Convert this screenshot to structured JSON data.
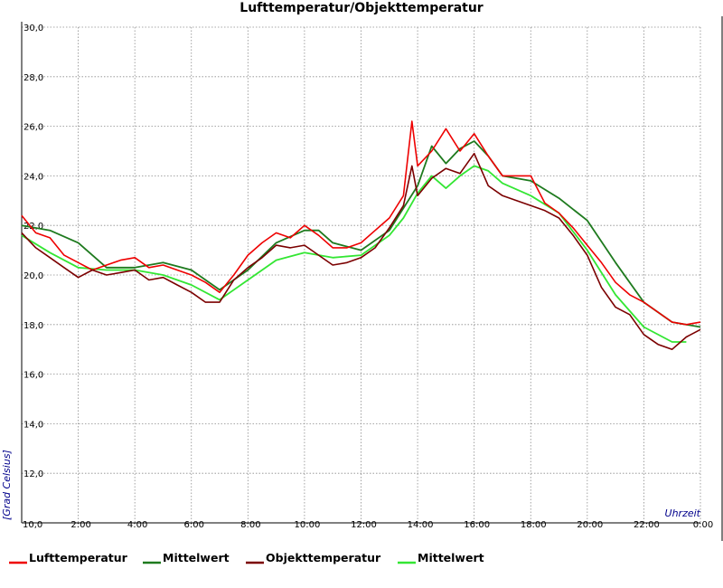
{
  "chart_data": {
    "type": "line",
    "title": "Lufttemperatur/Objekttemperatur",
    "xlabel": "Uhrzeit",
    "ylabel": "[Grad Celsius]",
    "xlim": [
      0,
      24
    ],
    "ylim": [
      10,
      30
    ],
    "x_ticks": [
      "10,0",
      "2:00",
      "4:00",
      "6:00",
      "8:00",
      "10:00",
      "12:00",
      "14:00",
      "16:00",
      "18:00",
      "20:00",
      "22:00",
      "0:00"
    ],
    "y_ticks": [
      "10,0",
      "12,0",
      "14,0",
      "16,0",
      "18,0",
      "20,0",
      "22,0",
      "24,0",
      "26,0",
      "28,0",
      "30,0"
    ],
    "grid": true,
    "legend_position": "bottom",
    "series": [
      {
        "name": "Lufttemperatur",
        "color": "#ee0000",
        "x": [
          0,
          0.5,
          1,
          1.5,
          2,
          2.5,
          3,
          3.5,
          4,
          4.5,
          5,
          5.5,
          6,
          6.5,
          7,
          7.5,
          8,
          8.5,
          9,
          9.5,
          10,
          10.5,
          11,
          11.5,
          12,
          12.5,
          13,
          13.5,
          13.8,
          14,
          14.5,
          15,
          15.5,
          16,
          16.5,
          17,
          17.5,
          18,
          18.5,
          19,
          19.5,
          20,
          20.5,
          21,
          21.5,
          22,
          22.5,
          23,
          23.5,
          24
        ],
        "y": [
          22.4,
          21.7,
          21.5,
          20.8,
          20.5,
          20.2,
          20.4,
          20.6,
          20.7,
          20.3,
          20.4,
          20.2,
          20.0,
          19.7,
          19.3,
          20.0,
          20.8,
          21.3,
          21.7,
          21.5,
          22.0,
          21.6,
          21.1,
          21.1,
          21.3,
          21.8,
          22.3,
          23.2,
          26.2,
          24.4,
          25.0,
          25.9,
          25.0,
          25.7,
          24.8,
          24.0,
          24.0,
          24.0,
          22.9,
          22.5,
          21.9,
          21.2,
          20.5,
          19.7,
          19.2,
          18.9,
          18.5,
          18.1,
          18.0,
          18.1
        ]
      },
      {
        "name": "Mittelwert",
        "color": "#1e7a1e",
        "x": [
          0,
          1,
          2,
          3,
          4,
          5,
          6,
          7,
          8,
          9,
          10,
          10.5,
          11,
          12,
          13,
          14,
          14.5,
          15,
          15.5,
          16,
          16.5,
          17,
          18,
          19,
          20,
          21,
          22,
          23,
          24
        ],
        "y": [
          22.0,
          21.8,
          21.3,
          20.3,
          20.3,
          20.5,
          20.2,
          19.4,
          20.2,
          21.3,
          21.8,
          21.8,
          21.3,
          21.0,
          21.8,
          23.6,
          25.2,
          24.5,
          25.1,
          25.4,
          24.8,
          24.0,
          23.8,
          23.1,
          22.2,
          20.5,
          18.9,
          18.1,
          17.9
        ]
      },
      {
        "name": "Objekttemperatur",
        "color": "#7b0000",
        "x": [
          0,
          0.5,
          1,
          1.5,
          2,
          2.5,
          3,
          3.5,
          4,
          4.5,
          5,
          5.5,
          6,
          6.5,
          7,
          7.5,
          8,
          8.5,
          9,
          9.5,
          10,
          10.5,
          11,
          11.5,
          12,
          12.5,
          13,
          13.5,
          13.8,
          14,
          14.5,
          15,
          15.5,
          16,
          16.5,
          17,
          17.5,
          18,
          18.5,
          19,
          19.5,
          20,
          20.5,
          21,
          21.5,
          22,
          22.5,
          23,
          23.5,
          24
        ],
        "y": [
          21.7,
          21.1,
          20.7,
          20.3,
          19.9,
          20.2,
          20.0,
          20.1,
          20.2,
          19.8,
          19.9,
          19.6,
          19.3,
          18.9,
          18.9,
          19.8,
          20.3,
          20.7,
          21.2,
          21.1,
          21.2,
          20.8,
          20.4,
          20.5,
          20.7,
          21.1,
          21.9,
          22.8,
          24.4,
          23.2,
          23.9,
          24.3,
          24.1,
          24.9,
          23.6,
          23.2,
          23.0,
          22.8,
          22.6,
          22.3,
          21.6,
          20.8,
          19.5,
          18.7,
          18.4,
          17.6,
          17.2,
          17.0,
          17.5,
          17.8
        ]
      },
      {
        "name": "Mittelwert",
        "color": "#33e633",
        "x": [
          0,
          1,
          2,
          3,
          4,
          5,
          6,
          7,
          8,
          9,
          10,
          11,
          12,
          13,
          13.5,
          14,
          14.5,
          15,
          15.5,
          16,
          16.5,
          17,
          18,
          19,
          20,
          21,
          22,
          23,
          23.5
        ],
        "y": [
          21.6,
          20.9,
          20.3,
          20.2,
          20.2,
          20.0,
          19.6,
          19.0,
          19.8,
          20.6,
          20.9,
          20.7,
          20.8,
          21.6,
          22.3,
          23.3,
          24.0,
          23.5,
          24.0,
          24.4,
          24.2,
          23.7,
          23.2,
          22.5,
          21.0,
          19.2,
          17.9,
          17.3,
          17.3
        ]
      }
    ]
  }
}
